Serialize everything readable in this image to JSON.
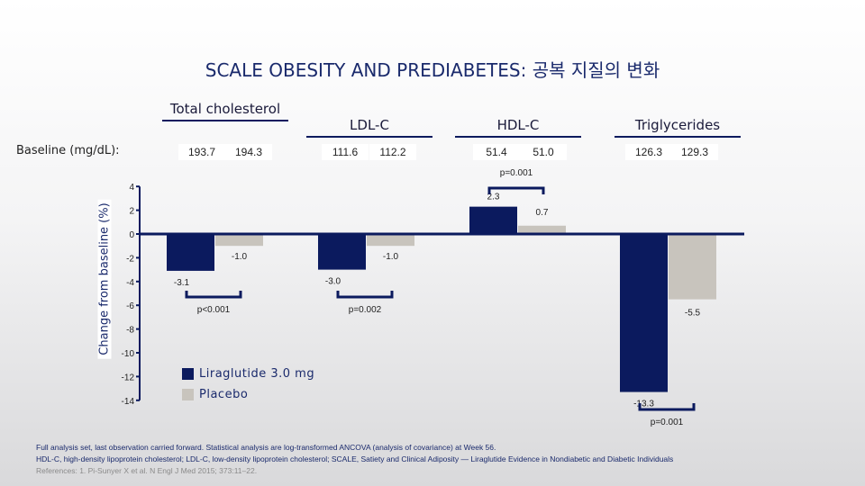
{
  "title": "SCALE OBESITY AND PREDIABETES: 공복 지질의 변화",
  "baseline_label": "Baseline (mg/dL):",
  "chart_data": {
    "type": "bar",
    "categories": [
      "Total cholesterol",
      "LDL-C",
      "HDL-C",
      "Triglycerides"
    ],
    "baseline": [
      [
        "193.7",
        "194.3"
      ],
      [
        "111.6",
        "112.2"
      ],
      [
        "51.4",
        "51.0"
      ],
      [
        "126.3",
        "129.3"
      ]
    ],
    "series": [
      {
        "name": "Liraglutide 3.0 mg",
        "values": [
          -3.1,
          -3.0,
          2.3,
          -13.3
        ],
        "color": "#0b1a5e"
      },
      {
        "name": "Placebo",
        "values": [
          -1.0,
          -1.0,
          0.7,
          -5.5
        ],
        "color": "#c8c4bd"
      }
    ],
    "value_labels": [
      [
        "-3.1",
        "-1.0"
      ],
      [
        "-3.0",
        "-1.0"
      ],
      [
        "2.3",
        "0.7"
      ],
      [
        "-13.3",
        "-5.5"
      ]
    ],
    "p_values": [
      "p<0.001",
      "p=0.002",
      "p=0.001",
      "p=0.001"
    ],
    "ylabel": "Change from baseline (%)",
    "ylim": [
      -14,
      4
    ],
    "yticks": [
      "4",
      "2",
      "0",
      "-2",
      "-4",
      "-6",
      "-8",
      "-10",
      "-12",
      "-14"
    ],
    "legend": "bottom-left"
  },
  "footnotes": [
    "Full analysis set, last observation carried forward. Statistical analysis are log-transformed ANCOVA (analysis of covariance) at Week 56.",
    "HDL-C, high-density lipoprotein cholesterol; LDL-C, low-density lipoprotein cholesterol; SCALE, Satiety and Clinical Adiposity — Liraglutide Evidence in Nondiabetic and Diabetic Individuals",
    "References: 1. Pi-Sunyer X et al. N Engl J Med 2015; 373:11–22."
  ]
}
